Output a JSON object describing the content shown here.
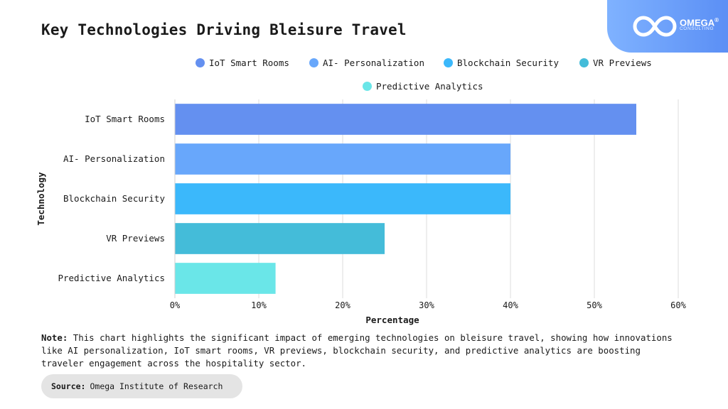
{
  "title": "Key Technologies Driving Bleisure Travel",
  "logo": {
    "name": "OMEGA",
    "mark": "®",
    "sub": "CONSULTING"
  },
  "legend": [
    {
      "label": "IoT Smart Rooms",
      "color": "#6490f0"
    },
    {
      "label": "AI- Personalization",
      "color": "#68a7fb"
    },
    {
      "label": "Blockchain Security",
      "color": "#3bb8fb"
    },
    {
      "label": "VR Previews",
      "color": "#44bcd9"
    },
    {
      "label": "Predictive Analytics",
      "color": "#6ae6e8"
    }
  ],
  "chart_data": {
    "type": "bar",
    "orientation": "horizontal",
    "categories": [
      "IoT Smart Rooms",
      "AI- Personalization",
      "Blockchain Security",
      "VR Previews",
      "Predictive Analytics"
    ],
    "values": [
      55,
      40,
      40,
      25,
      12
    ],
    "colors": [
      "#6490f0",
      "#68a7fb",
      "#3bb8fb",
      "#44bcd9",
      "#6ae6e8"
    ],
    "xlabel": "Percentage",
    "ylabel": "Technology",
    "xlim": [
      0,
      60
    ],
    "xticks": [
      "0%",
      "10%",
      "20%",
      "30%",
      "40%",
      "50%",
      "60%"
    ],
    "grid": "vertical",
    "legend_position": "top"
  },
  "note": {
    "label": "Note:",
    "text": "This chart highlights the significant impact of emerging technologies on bleisure travel, showing how innovations like AI personalization, IoT smart rooms, VR previews, blockchain security, and predictive analytics are boosting traveler engagement across the hospitality sector."
  },
  "source": {
    "label": "Source:",
    "text": "Omega Institute of Research"
  }
}
